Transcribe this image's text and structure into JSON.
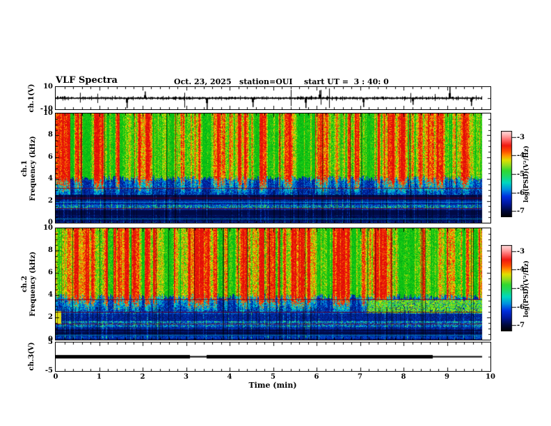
{
  "header": {
    "title": "VLF Spectra",
    "date": "Oct. 23, 2025",
    "station": "station=OUI",
    "start_ut": "start UT =  3 : 40: 0"
  },
  "time_axis": {
    "label": "Time (min)",
    "min": 0,
    "max": 10,
    "major_ticks": [
      0,
      1,
      2,
      3,
      4,
      5,
      6,
      7,
      8,
      9,
      10
    ],
    "minor_step": 0.2,
    "data_end_min": 9.8
  },
  "panels": {
    "ch1_wave": {
      "ylabel": "ch.1(V)",
      "ymin": -10,
      "ymax": 10,
      "yticks": [
        10,
        -10
      ]
    },
    "ch1_spec": {
      "ylabel_line1": "ch.1",
      "ylabel_line2": "Frequency (kHz)",
      "ymin": 0,
      "ymax": 10,
      "yticks": [
        0,
        2,
        4,
        6,
        8,
        10
      ],
      "minor_step": 0.5
    },
    "ch2_spec": {
      "ylabel_line1": "ch.2",
      "ylabel_line2": "Frequency (kHz)",
      "ymin": 0,
      "ymax": 10,
      "yticks": [
        0,
        2,
        4,
        6,
        8,
        10
      ],
      "minor_step": 0.5
    },
    "ch3": {
      "ylabel": "ch.3(V)",
      "ymin": -5,
      "ymax": 5,
      "yticks": [
        5,
        -5
      ]
    }
  },
  "colorbar": {
    "label": "log(PSD)(V²/Hz)",
    "ticks": [
      -3,
      -4,
      -5,
      -6,
      -7
    ],
    "tick_top_frac": 0.07,
    "tick_bottom_frac": 0.93,
    "gradient": [
      {
        "p": 0.0,
        "c": "#000000"
      },
      {
        "p": 0.07,
        "c": "#000838"
      },
      {
        "p": 0.16,
        "c": "#0018a0"
      },
      {
        "p": 0.24,
        "c": "#0030e0"
      },
      {
        "p": 0.32,
        "c": "#0090e0"
      },
      {
        "p": 0.4,
        "c": "#00d8c0"
      },
      {
        "p": 0.48,
        "c": "#20d860"
      },
      {
        "p": 0.54,
        "c": "#30d830"
      },
      {
        "p": 0.6,
        "c": "#90dc20"
      },
      {
        "p": 0.66,
        "c": "#e0e000"
      },
      {
        "p": 0.71,
        "c": "#ff9800"
      },
      {
        "p": 0.76,
        "c": "#ff5000"
      },
      {
        "p": 0.83,
        "c": "#f01810"
      },
      {
        "p": 0.9,
        "c": "#ff7070"
      },
      {
        "p": 0.95,
        "c": "#ffb0b0"
      },
      {
        "p": 1.0,
        "c": "#ffe0e0"
      }
    ]
  },
  "chart_data": [
    {
      "type": "line",
      "name": "ch1-waveform",
      "ylabel": "ch.1(V)",
      "xlim": [
        0,
        10
      ],
      "ylim": [
        -10,
        10
      ],
      "description": "continuous broadband noise of about +/-2 V with impulsive spikes",
      "noise_amp_V": 1.6,
      "spikes": [
        {
          "t": 1.63,
          "v": -9
        },
        {
          "t": 2.05,
          "v": 6
        },
        {
          "t": 3.47,
          "v": -10
        },
        {
          "t": 4.52,
          "v": -8
        },
        {
          "t": 5.75,
          "v": -9
        },
        {
          "t": 6.06,
          "v": 7
        },
        {
          "t": 7.07,
          "v": -8
        },
        {
          "t": 8.2,
          "v": -6
        },
        {
          "t": 9.05,
          "v": 10
        },
        {
          "t": 9.55,
          "v": -7
        }
      ],
      "seed": 4242
    },
    {
      "type": "heatmap",
      "name": "ch1-spectrogram",
      "xlim": [
        0,
        10
      ],
      "ylim": [
        0,
        10
      ],
      "zlim": [
        -7,
        -3
      ],
      "zlabel": "log(PSD)(V²/Hz)",
      "features": {
        "striation_above_kHz": 4.1,
        "quiet_band_below_kHz": 2.55,
        "maroon_lines_kHz": [
          3.2,
          2.3,
          1.35
        ],
        "cyan_rows_kHz": [
          0.4,
          1.9
        ],
        "seed": 11
      }
    },
    {
      "type": "heatmap",
      "name": "ch2-spectrogram",
      "xlim": [
        0,
        10
      ],
      "ylim": [
        0,
        10
      ],
      "zlim": [
        -7,
        -3
      ],
      "zlabel": "log(PSD)(V²/Hz)",
      "features": {
        "striation_above_kHz": 3.9,
        "quiet_band_below_kHz": 2.45,
        "maroon_lines_kHz": [
          3.65,
          2.5,
          1.45
        ],
        "cyan_rows_kHz": [
          0.45
        ],
        "green_band": {
          "t_start": 7.15,
          "f_low": 2.4,
          "f_high": 3.6
        },
        "start_blob": {
          "t_end": 0.12,
          "f_low": 1.4,
          "f_high": 2.6
        },
        "seed": 77
      }
    },
    {
      "type": "line",
      "name": "ch3-level",
      "ylabel": "ch.3(V)",
      "xlim": [
        0,
        10
      ],
      "ylim": [
        -5,
        5
      ],
      "segments": [
        {
          "t0": 0.0,
          "t1": 3.09,
          "style": "thick"
        },
        {
          "t0": 3.09,
          "t1": 3.47,
          "style": "thin"
        },
        {
          "t0": 3.47,
          "t1": 8.67,
          "style": "thick"
        },
        {
          "t0": 8.67,
          "t1": 9.8,
          "style": "thin"
        }
      ]
    }
  ]
}
